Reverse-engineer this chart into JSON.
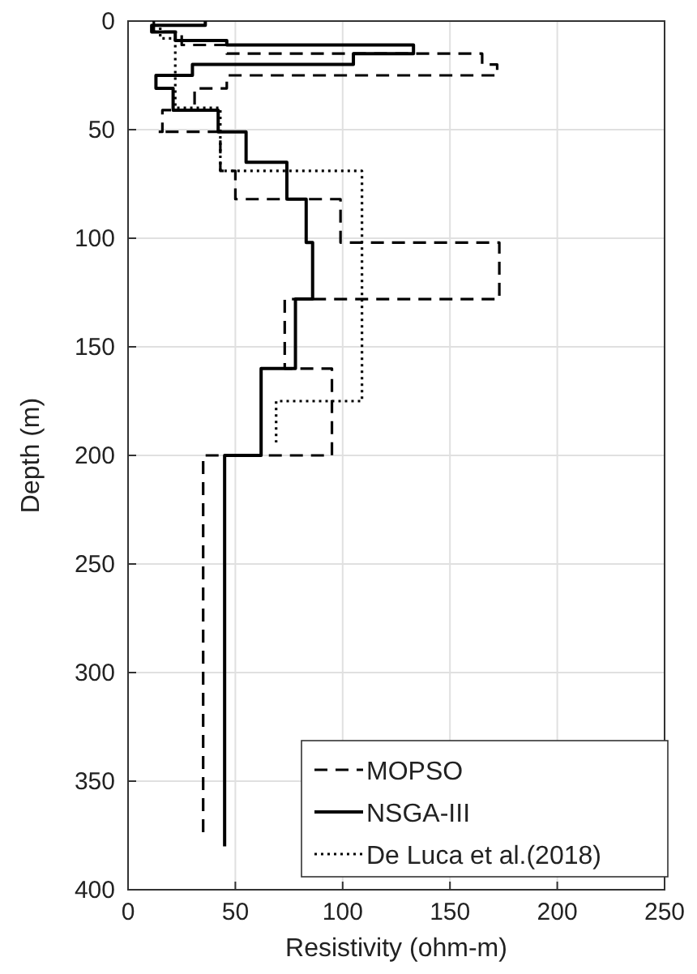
{
  "chart_data": {
    "type": "line",
    "xlabel": "Resistivity (ohm-m)",
    "ylabel": "Depth (m)",
    "xlim": [
      0,
      250
    ],
    "xticks": [
      0,
      50,
      100,
      150,
      200,
      250
    ],
    "ylim": [
      400,
      0
    ],
    "yticks": [
      0,
      50,
      100,
      150,
      200,
      250,
      300,
      350,
      400
    ],
    "grid": true,
    "legend": "bottom right",
    "marker": "none",
    "series": [
      {
        "name": "MOPSO",
        "color": "#000000",
        "line_style": "dashed",
        "x": [
          12,
          12,
          25,
          25,
          46,
          46,
          165,
          165,
          172,
          172,
          46,
          46,
          31,
          31,
          16,
          16,
          14,
          14,
          43,
          43,
          50,
          50,
          99,
          99,
          173,
          173,
          73,
          73,
          95,
          95,
          35,
          35
        ],
        "values": [
          0,
          5,
          5,
          11,
          11,
          15,
          15,
          20,
          20,
          25,
          25,
          31,
          31,
          41,
          41,
          51,
          51,
          51,
          51,
          69,
          69,
          82,
          82,
          102,
          102,
          128,
          128,
          160,
          160,
          200,
          200,
          375
        ]
      },
      {
        "name": "NSGA-III",
        "color": "#000000",
        "line_style": "solid",
        "x": [
          36,
          36,
          11,
          11,
          22,
          22,
          46,
          46,
          133,
          133,
          105,
          105,
          30,
          30,
          13,
          13,
          21,
          21,
          42,
          42,
          55,
          55,
          74,
          74,
          83,
          83,
          86,
          86,
          78,
          78,
          62,
          62,
          45,
          45
        ],
        "values": [
          0,
          2,
          2,
          5,
          5,
          9,
          9,
          11,
          11,
          15,
          15,
          20,
          20,
          25,
          25,
          31,
          31,
          41,
          41,
          51,
          51,
          65,
          65,
          82,
          82,
          102,
          102,
          128,
          128,
          160,
          160,
          200,
          200,
          380
        ]
      },
      {
        "name": "De Luca et al.(2018)",
        "color": "#000000",
        "line_style": "dotted",
        "x": [
          15,
          15,
          22,
          22,
          43,
          43,
          109,
          109,
          69,
          69
        ],
        "values": [
          3,
          8,
          8,
          40,
          40,
          69,
          69,
          175,
          175,
          194
        ]
      }
    ]
  }
}
